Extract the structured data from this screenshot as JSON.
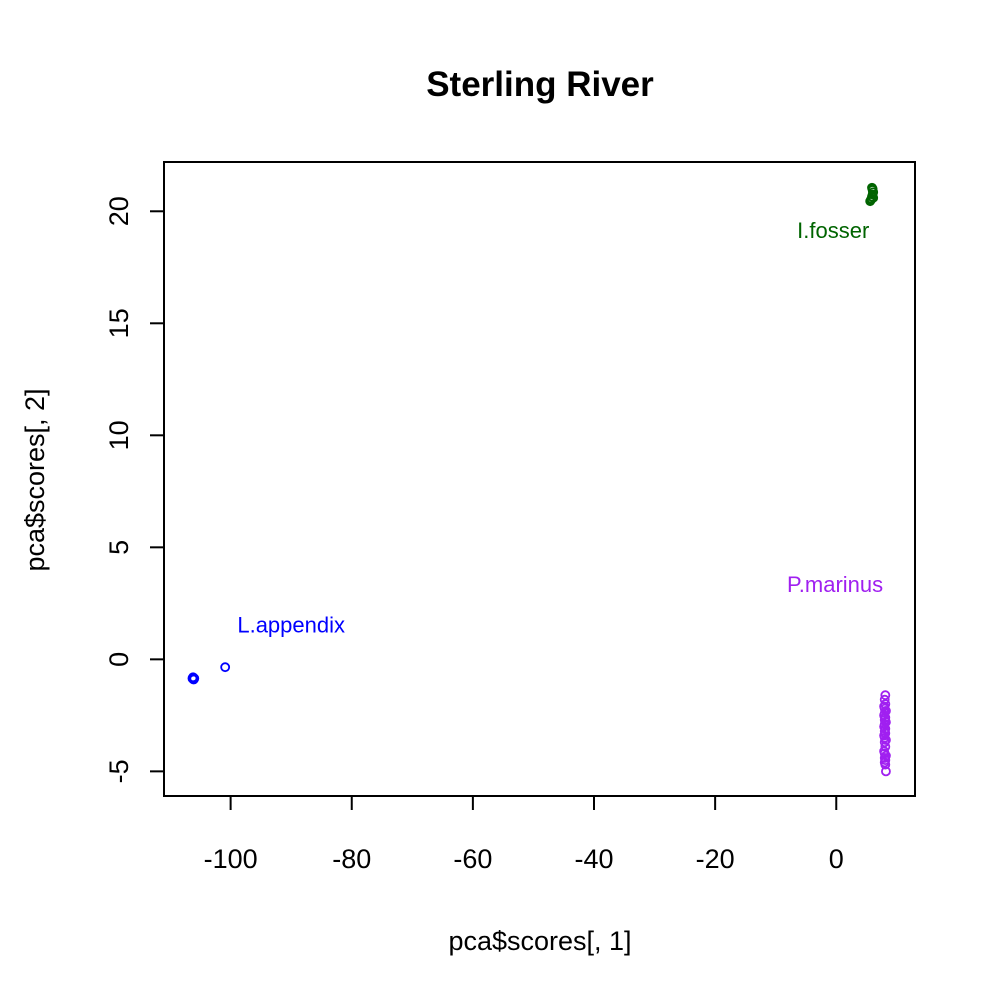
{
  "chart_data": {
    "type": "scatter",
    "title": "Sterling River",
    "xlabel": "pca$scores[, 1]",
    "ylabel": "pca$scores[, 2]",
    "xlim": [
      -111,
      13
    ],
    "ylim": [
      -6.1,
      22.2
    ],
    "x_ticks": [
      -100,
      -80,
      -60,
      -40,
      -20,
      0
    ],
    "y_ticks": [
      -5,
      0,
      5,
      10,
      15,
      20
    ],
    "grid": false,
    "series": [
      {
        "name": "L.appendix",
        "color": "#0000ff",
        "label_at": [
          -90,
          1.2
        ],
        "points": [
          [
            -106.3,
            -0.85
          ],
          [
            -106.1,
            -0.9
          ],
          [
            -106.2,
            -0.8
          ],
          [
            -106.0,
            -0.85
          ],
          [
            -106.2,
            -0.88
          ],
          [
            -100.9,
            -0.35
          ]
        ]
      },
      {
        "name": "I.fosser",
        "color": "#006400",
        "label_at": [
          -0.5,
          18.8
        ],
        "points": [
          [
            5.6,
            20.45
          ],
          [
            5.8,
            20.55
          ],
          [
            5.9,
            20.65
          ],
          [
            6.0,
            20.75
          ],
          [
            6.1,
            20.85
          ],
          [
            6.0,
            20.95
          ],
          [
            5.9,
            21.05
          ],
          [
            6.1,
            20.6
          ],
          [
            5.7,
            20.5
          ],
          [
            6.0,
            21.0
          ]
        ]
      },
      {
        "name": "P.marinus",
        "color": "#a020f0",
        "label_at": [
          -0.2,
          3.0
        ],
        "points": [
          [
            8.1,
            -1.6
          ],
          [
            8.0,
            -1.8
          ],
          [
            8.1,
            -2.0
          ],
          [
            7.9,
            -2.1
          ],
          [
            8.0,
            -2.2
          ],
          [
            8.2,
            -2.3
          ],
          [
            8.0,
            -2.4
          ],
          [
            7.9,
            -2.5
          ],
          [
            8.1,
            -2.6
          ],
          [
            8.0,
            -2.7
          ],
          [
            8.2,
            -2.8
          ],
          [
            8.0,
            -2.9
          ],
          [
            7.9,
            -3.0
          ],
          [
            8.1,
            -3.1
          ],
          [
            8.0,
            -3.2
          ],
          [
            8.1,
            -3.3
          ],
          [
            7.9,
            -3.4
          ],
          [
            8.0,
            -3.5
          ],
          [
            8.2,
            -3.6
          ],
          [
            8.0,
            -3.7
          ],
          [
            8.1,
            -3.9
          ],
          [
            7.9,
            -4.1
          ],
          [
            8.0,
            -4.2
          ],
          [
            8.2,
            -4.3
          ],
          [
            8.0,
            -4.4
          ],
          [
            8.1,
            -4.5
          ],
          [
            8.0,
            -4.6
          ],
          [
            8.1,
            -4.7
          ],
          [
            8.2,
            -5.0
          ]
        ]
      }
    ]
  }
}
